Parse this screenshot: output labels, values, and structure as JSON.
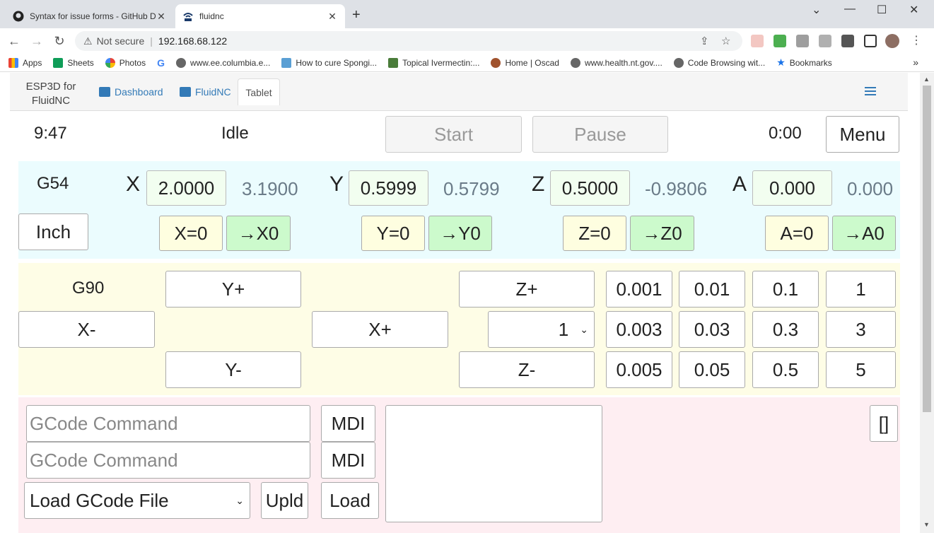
{
  "browser": {
    "tabs": [
      {
        "title": "Syntax for issue forms - GitHub D",
        "icon": "github-icon",
        "active": false
      },
      {
        "title": "fluidnc",
        "icon": "esp3d-icon",
        "active": true
      }
    ],
    "address": {
      "security_label": "Not secure",
      "url": "192.168.68.122"
    },
    "bookmarks": [
      {
        "label": "Apps",
        "icon": "apps-grid-icon"
      },
      {
        "label": "Sheets",
        "icon": "sheets-icon"
      },
      {
        "label": "Photos",
        "icon": "photos-icon"
      },
      {
        "label": "",
        "icon": "google-icon"
      },
      {
        "label": "www.ee.columbia.e...",
        "icon": "globe-icon"
      },
      {
        "label": "How to cure Spongi...",
        "icon": "ja-icon"
      },
      {
        "label": "Topical Ivermectin:...",
        "icon": "ivermectin-icon"
      },
      {
        "label": "Home | Oscad",
        "icon": "oscad-icon"
      },
      {
        "label": "www.health.nt.gov....",
        "icon": "globe-icon"
      },
      {
        "label": "Code Browsing wit...",
        "icon": "globe-icon"
      },
      {
        "label": "Bookmarks",
        "icon": "star-icon"
      }
    ]
  },
  "header": {
    "brand_line1": "ESP3D for",
    "brand_line2": "FluidNC",
    "nav": [
      {
        "label": "Dashboard",
        "icon": "dashboard-icon"
      },
      {
        "label": "FluidNC",
        "icon": "fluidnc-icon"
      },
      {
        "label": "Tablet",
        "icon": ""
      }
    ]
  },
  "status": {
    "time": "9:47",
    "state": "Idle",
    "start_label": "Start",
    "pause_label": "Pause",
    "runtime": "0:00",
    "menu_label": "Menu"
  },
  "dro": {
    "coord_system": "G54",
    "units_label": "Inch",
    "axes": [
      {
        "letter": "X",
        "work": "2.0000",
        "machine": "3.1900",
        "zero_label": "X=0",
        "goto_label": "→X0"
      },
      {
        "letter": "Y",
        "work": "0.5999",
        "machine": "0.5799",
        "zero_label": "Y=0",
        "goto_label": "→Y0"
      },
      {
        "letter": "Z",
        "work": "0.5000",
        "machine": "-0.9806",
        "zero_label": "Z=0",
        "goto_label": "→Z0"
      },
      {
        "letter": "A",
        "work": "0.000",
        "machine": "0.000",
        "zero_label": "A=0",
        "goto_label": "→A0"
      }
    ]
  },
  "jog": {
    "mode": "G90",
    "y_plus": "Y+",
    "y_minus": "Y-",
    "x_minus": "X-",
    "x_plus": "X+",
    "z_plus": "Z+",
    "z_minus": "Z-",
    "z_step_select": "1",
    "increments": [
      [
        "0.001",
        "0.01",
        "0.1",
        "1"
      ],
      [
        "0.003",
        "0.03",
        "0.3",
        "3"
      ],
      [
        "0.005",
        "0.05",
        "0.5",
        "5"
      ]
    ]
  },
  "command": {
    "gcode_placeholder": "GCode Command",
    "mdi_label": "MDI",
    "file_select": "Load GCode File",
    "upload_label": "Upld",
    "load_label": "Load",
    "expand_label": "[]"
  }
}
